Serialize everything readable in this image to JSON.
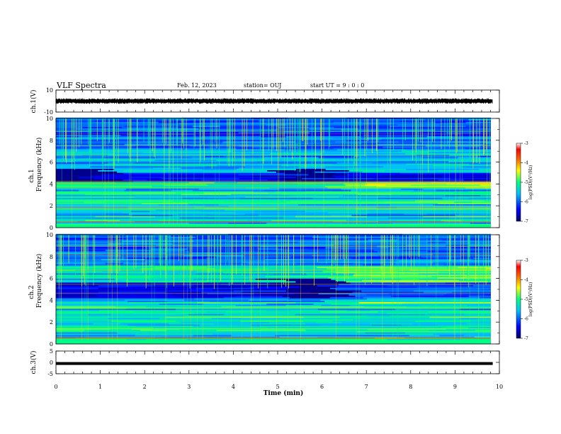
{
  "header": {
    "title": "VLF Spectra",
    "date": "Feb. 12, 2023",
    "station": "station= OUJ",
    "start": "start  UT =  9 : 0  : 0"
  },
  "chart_data": [
    {
      "type": "line",
      "panel": "ch1-waveform",
      "ylabel": "ch.1(V)",
      "ylim": [
        -10,
        10
      ],
      "yticks": [
        "10",
        "-10"
      ],
      "xlim": [
        0,
        10
      ],
      "description_values": {
        "mean": 0,
        "amplitude_approx": 2.5
      }
    },
    {
      "type": "heatmap",
      "panel": "ch1-spectrogram",
      "ylabel": "ch.1 Frequency (kHz)",
      "ylim": [
        0,
        10
      ],
      "yticks": [
        "0",
        "2",
        "4",
        "6",
        "8",
        "10"
      ],
      "xlim": [
        0,
        10
      ],
      "data_end_min": 9.8,
      "quiet_band_khz": [
        4.2,
        5.0
      ],
      "gap_segments_min": [
        [
          0,
          1.0
        ],
        [
          5.0,
          6.3
        ]
      ],
      "colorbar": {
        "label": "log(PSD)(V²/Hz)",
        "ticks": [
          "-3",
          "-4",
          "-5",
          "-6",
          "-7"
        ],
        "range": [
          -7,
          -3
        ],
        "colors": [
          "#000080",
          "#0000ff",
          "#00bfff",
          "#00ff80",
          "#ffff00",
          "#ff8000",
          "#ff0000",
          "#ffffff"
        ]
      }
    },
    {
      "type": "heatmap",
      "panel": "ch2-spectrogram",
      "ylabel": "ch.2 Frequency (kHz)",
      "ylim": [
        0,
        10
      ],
      "yticks": [
        "0",
        "2",
        "4",
        "6",
        "8",
        "10"
      ],
      "xlim": [
        0,
        10
      ],
      "data_end_min": 9.8,
      "quiet_band_khz": [
        4.2,
        5.6
      ],
      "gap_segments_min": [
        [
          5.0,
          6.3
        ]
      ],
      "colorbar": {
        "label": "log(PSD)(V²/Hz)",
        "ticks": [
          "-3",
          "-4",
          "-5",
          "-6",
          "-7"
        ],
        "range": [
          -7,
          -3
        ],
        "colors": [
          "#000080",
          "#0000ff",
          "#00bfff",
          "#00ff80",
          "#ffff00",
          "#ff8000",
          "#ff0000",
          "#ffffff"
        ]
      }
    },
    {
      "type": "line",
      "panel": "ch3-waveform",
      "ylabel": "ch.3(V)",
      "ylim": [
        -5,
        5
      ],
      "yticks": [
        "5",
        "0",
        "-5"
      ],
      "xlim": [
        0,
        10
      ],
      "description_values": {
        "mean": -0.5
      }
    }
  ],
  "xaxis": {
    "label": "Time  (min)",
    "ticks": [
      "0",
      "1",
      "2",
      "3",
      "4",
      "5",
      "6",
      "7",
      "8",
      "9",
      "10"
    ]
  },
  "labels": {
    "ch1_top": "ch.1",
    "ch1_bottom": "Frequency (kHz)",
    "ch2_top": "ch.2",
    "ch2_bottom": "Frequency (kHz)"
  }
}
